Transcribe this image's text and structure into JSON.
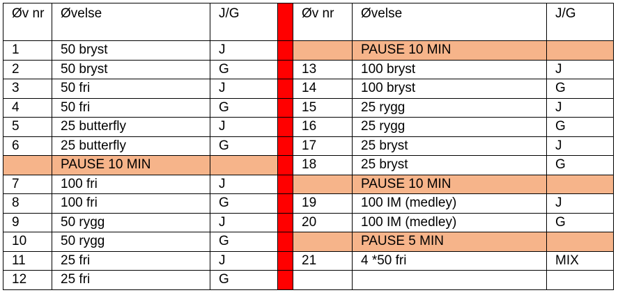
{
  "colors": {
    "pause": "#f6b48a",
    "divider": "#ff0000"
  },
  "headers": {
    "left": {
      "num": "Øv nr",
      "exercise": "Øvelse",
      "jg": "J/G"
    },
    "right": {
      "num": "Øv nr",
      "exercise": "Øvelse",
      "jg": "J/G"
    }
  },
  "rows": [
    {
      "left": {
        "num": "1",
        "exercise": "50 bryst",
        "jg": "J"
      },
      "right": {
        "pause": true,
        "num": "",
        "exercise": "PAUSE 10 MIN",
        "jg": ""
      }
    },
    {
      "left": {
        "num": "2",
        "exercise": "50 bryst",
        "jg": "G"
      },
      "right": {
        "num": "13",
        "exercise": "100 bryst",
        "jg": "J"
      }
    },
    {
      "left": {
        "num": "3",
        "exercise": "50 fri",
        "jg": "J"
      },
      "right": {
        "num": "14",
        "exercise": "100 bryst",
        "jg": "G"
      }
    },
    {
      "left": {
        "num": "4",
        "exercise": "50 fri",
        "jg": "G"
      },
      "right": {
        "num": "15",
        "exercise": "25 rygg",
        "jg": "J"
      }
    },
    {
      "left": {
        "num": "5",
        "exercise": "25 butterfly",
        "jg": "J"
      },
      "right": {
        "num": "16",
        "exercise": "25 rygg",
        "jg": "G"
      }
    },
    {
      "left": {
        "num": "6",
        "exercise": "25 butterfly",
        "jg": "G"
      },
      "right": {
        "num": "17",
        "exercise": "25 bryst",
        "jg": "J"
      }
    },
    {
      "left": {
        "pause": true,
        "num": "",
        "exercise": "PAUSE 10 MIN",
        "jg": ""
      },
      "right": {
        "num": "18",
        "exercise": "25 bryst",
        "jg": "G"
      }
    },
    {
      "left": {
        "num": "7",
        "exercise": "100 fri",
        "jg": "J"
      },
      "right": {
        "pause": true,
        "num": "",
        "exercise": "PAUSE 10 MIN",
        "jg": ""
      }
    },
    {
      "left": {
        "num": "8",
        "exercise": "100 fri",
        "jg": "G"
      },
      "right": {
        "num": "19",
        "exercise": "100 IM (medley)",
        "jg": "J"
      }
    },
    {
      "left": {
        "num": "9",
        "exercise": "50 rygg",
        "jg": "J"
      },
      "right": {
        "num": "20",
        "exercise": "100 IM (medley)",
        "jg": "G"
      }
    },
    {
      "left": {
        "num": "10",
        "exercise": "50 rygg",
        "jg": "G"
      },
      "right": {
        "pause": true,
        "num": "",
        "exercise": "PAUSE 5 MIN",
        "jg": ""
      }
    },
    {
      "left": {
        "num": "11",
        "exercise": "25 fri",
        "jg": "J"
      },
      "right": {
        "num": "21",
        "exercise": "4 *50 fri",
        "jg": "MIX"
      }
    },
    {
      "left": {
        "num": "12",
        "exercise": "25 fri",
        "jg": "G"
      },
      "right": {
        "num": "",
        "exercise": "",
        "jg": ""
      }
    }
  ]
}
